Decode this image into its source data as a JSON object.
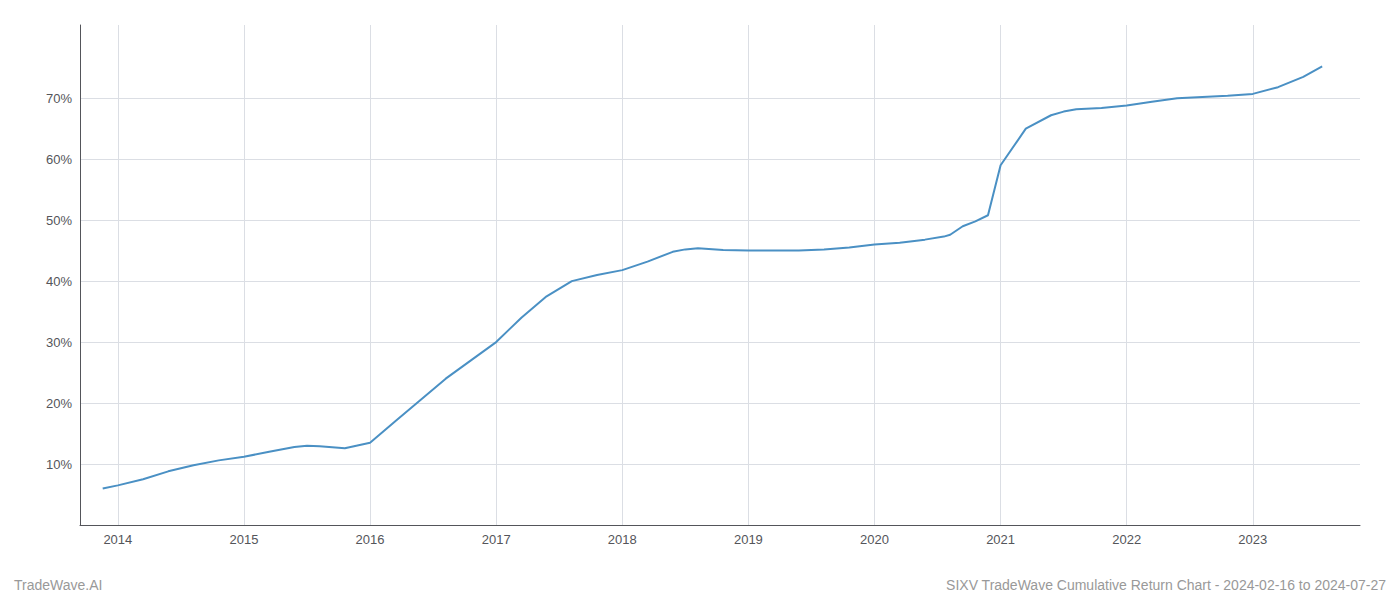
{
  "chart_data": {
    "type": "line",
    "annotations": [
      "TradeWave.AI",
      "SIXV TradeWave Cumulative Return Chart - 2024-02-16 to 2024-07-27"
    ],
    "x": [
      2013.88,
      2014.0,
      2014.2,
      2014.4,
      2014.6,
      2014.8,
      2015.0,
      2015.2,
      2015.4,
      2015.5,
      2015.6,
      2015.8,
      2016.0,
      2016.2,
      2016.4,
      2016.6,
      2016.8,
      2017.0,
      2017.1,
      2017.2,
      2017.4,
      2017.6,
      2017.8,
      2018.0,
      2018.2,
      2018.4,
      2018.5,
      2018.6,
      2018.8,
      2019.0,
      2019.2,
      2019.4,
      2019.6,
      2019.8,
      2020.0,
      2020.2,
      2020.4,
      2020.55,
      2020.6,
      2020.65,
      2020.7,
      2020.8,
      2020.9,
      2021.0,
      2021.2,
      2021.4,
      2021.5,
      2021.6,
      2021.8,
      2022.0,
      2022.2,
      2022.4,
      2022.6,
      2022.8,
      2023.0,
      2023.2,
      2023.4,
      2023.55
    ],
    "values": [
      0.06,
      0.065,
      0.075,
      0.088,
      0.098,
      0.106,
      0.112,
      0.12,
      0.128,
      0.13,
      0.129,
      0.126,
      0.135,
      0.17,
      0.205,
      0.24,
      0.27,
      0.3,
      0.32,
      0.34,
      0.375,
      0.4,
      0.41,
      0.418,
      0.432,
      0.448,
      0.452,
      0.454,
      0.451,
      0.45,
      0.45,
      0.45,
      0.452,
      0.455,
      0.46,
      0.463,
      0.468,
      0.473,
      0.476,
      0.483,
      0.49,
      0.498,
      0.508,
      0.59,
      0.65,
      0.672,
      0.678,
      0.682,
      0.684,
      0.688,
      0.694,
      0.7,
      0.702,
      0.704,
      0.707,
      0.718,
      0.735,
      0.752
    ],
    "color": "#4a90c4",
    "xlim": [
      2013.7,
      2023.85
    ],
    "xticks": [
      2014,
      2015,
      2016,
      2017,
      2018,
      2019,
      2020,
      2021,
      2022,
      2023
    ],
    "ylim": [
      0.0,
      0.82
    ],
    "yticks": [
      {
        "value": 0.1,
        "label": "10%"
      },
      {
        "value": 0.2,
        "label": "20%"
      },
      {
        "value": 0.3,
        "label": "30%"
      },
      {
        "value": 0.4,
        "label": "40%"
      },
      {
        "value": 0.5,
        "label": "50%"
      },
      {
        "value": 0.6,
        "label": "60%"
      },
      {
        "value": 0.7,
        "label": "70%"
      }
    ],
    "grid": true
  }
}
